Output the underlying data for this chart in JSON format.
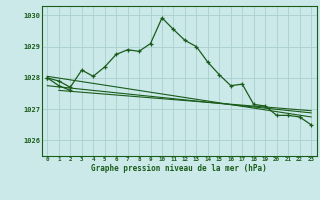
{
  "title": "Graphe pression niveau de la mer (hPa)",
  "background_color": "#cbe9e9",
  "grid_color": "#aacfcf",
  "line_color": "#1a5c1a",
  "xlim": [
    -0.5,
    23.5
  ],
  "ylim": [
    1025.5,
    1030.3
  ],
  "yticks": [
    1026,
    1027,
    1028,
    1029,
    1030
  ],
  "xticks": [
    0,
    1,
    2,
    3,
    4,
    5,
    6,
    7,
    8,
    9,
    10,
    11,
    12,
    13,
    14,
    15,
    16,
    17,
    18,
    19,
    20,
    21,
    22,
    23
  ],
  "series1_x": [
    0,
    1,
    2,
    3,
    4,
    5,
    6,
    7,
    8,
    9,
    10,
    11,
    12,
    13,
    14,
    15,
    16,
    17,
    18,
    19,
    20,
    21,
    22,
    23
  ],
  "series1_y": [
    1028.0,
    1027.9,
    1027.7,
    1028.25,
    1028.05,
    1028.35,
    1028.75,
    1028.9,
    1028.85,
    1029.1,
    1029.92,
    1029.55,
    1029.2,
    1029.0,
    1028.5,
    1028.1,
    1027.75,
    1027.8,
    1027.15,
    1027.1,
    1026.8,
    1026.8,
    1026.75,
    1026.5
  ],
  "series2_x": [
    0,
    1,
    2
  ],
  "series2_y": [
    1028.0,
    1027.75,
    1027.6
  ],
  "trendline1_x": [
    0,
    23
  ],
  "trendline1_y": [
    1028.05,
    1026.75
  ],
  "trendline2_x": [
    0,
    23
  ],
  "trendline2_y": [
    1027.75,
    1026.88
  ],
  "trendline3_x": [
    1,
    23
  ],
  "trendline3_y": [
    1027.6,
    1026.95
  ]
}
